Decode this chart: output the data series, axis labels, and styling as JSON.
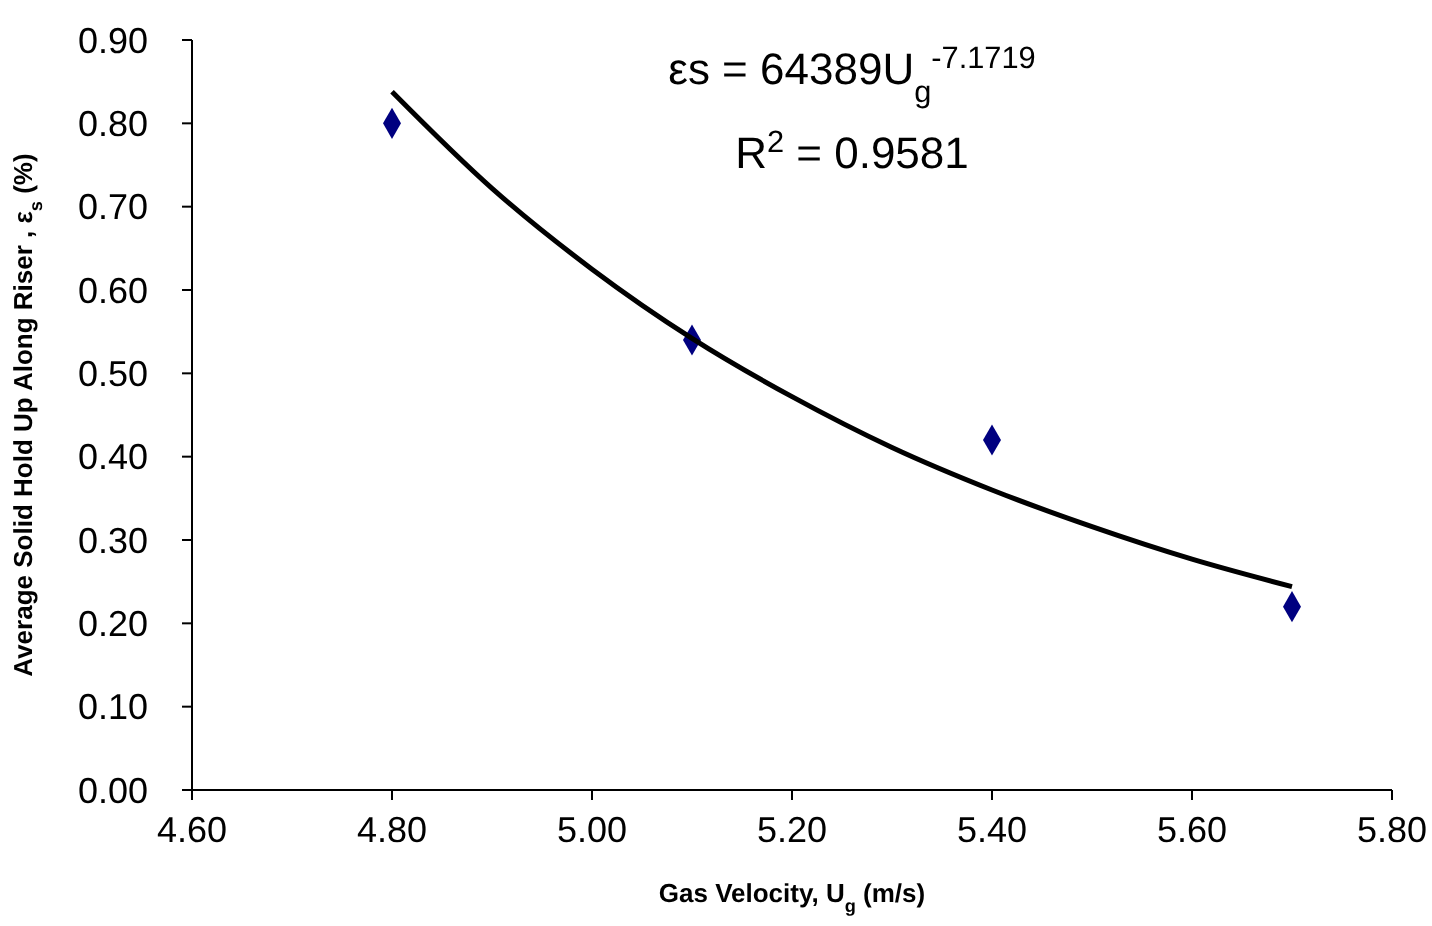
{
  "chart_data": {
    "type": "scatter",
    "xlabel": "Gas Velocity, U$_{g}$ (m/s)",
    "ylabel": "Average Solid Hold Up Along Riser , ε$_{s}$ (%)",
    "annotations": [
      "εs = 64389U$_{g}$$^{-7.1719}$",
      "R$^{2}$ = 0.9581"
    ],
    "series": [
      {
        "color": "#000080",
        "marker": "diamond",
        "x": [
          4.8,
          5.1,
          5.4,
          5.7
        ],
        "values": [
          0.8,
          0.54,
          0.42,
          0.22
        ]
      },
      {
        "type": "line",
        "color": "#000000",
        "marker": "none",
        "x": [
          4.8,
          4.9,
          5.0,
          5.1,
          5.2,
          5.3,
          5.4,
          5.5,
          5.6,
          5.7
        ],
        "values": [
          0.838,
          0.722,
          0.625,
          0.542,
          0.472,
          0.411,
          0.36,
          0.316,
          0.277,
          0.244
        ]
      }
    ],
    "xlim": [
      4.6,
      5.8
    ],
    "ylim": [
      0,
      0.9
    ],
    "xticks": [
      {
        "value": 4.6,
        "label": "4.60"
      },
      {
        "value": 4.8,
        "label": "4.80"
      },
      {
        "value": 5.0,
        "label": "5.00"
      },
      {
        "value": 5.2,
        "label": "5.20"
      },
      {
        "value": 5.4,
        "label": "5.40"
      },
      {
        "value": 5.6,
        "label": "5.60"
      },
      {
        "value": 5.8,
        "label": "5.80"
      }
    ],
    "yticks": [
      {
        "value": 0,
        "label": "0.00"
      },
      {
        "value": 0.1,
        "label": "0.10"
      },
      {
        "value": 0.2,
        "label": "0.20"
      },
      {
        "value": 0.3,
        "label": "0.30"
      },
      {
        "value": 0.4,
        "label": "0.40"
      },
      {
        "value": 0.5,
        "label": "0.50"
      },
      {
        "value": 0.6,
        "label": "0.60"
      },
      {
        "value": 0.7,
        "label": "0.70"
      },
      {
        "value": 0.8,
        "label": "0.80"
      },
      {
        "value": 0.9,
        "label": "0.90"
      }
    ],
    "grid": false
  }
}
